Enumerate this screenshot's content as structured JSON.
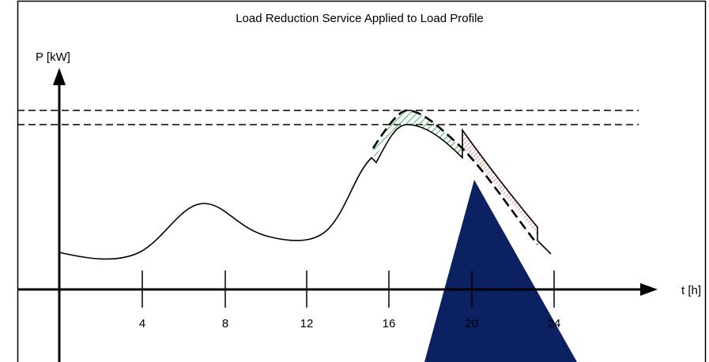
{
  "title": "Load Reduction Service Applied to Load Profile",
  "y_axis_label": "P [kW]",
  "x_axis_label": "t [h]",
  "x_ticks": [
    "4",
    "8",
    "12",
    "16",
    "20",
    "24"
  ]
}
